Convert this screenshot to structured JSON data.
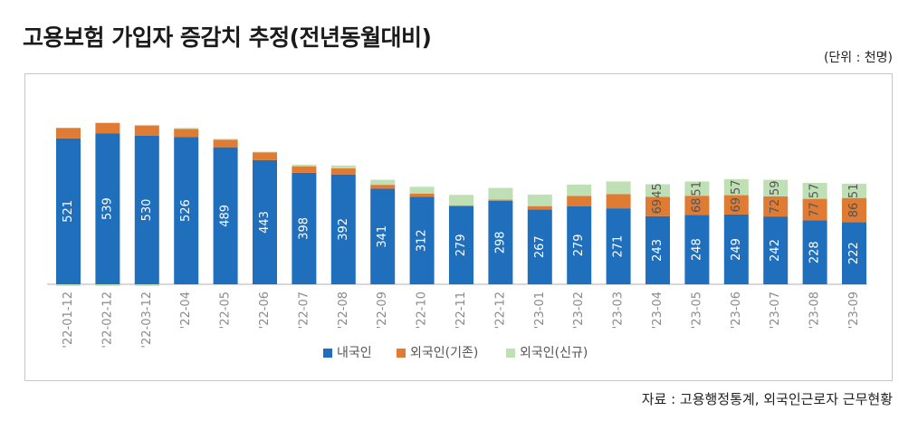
{
  "title": "고용보험 가입자 증감치 추정(전년동월대비)",
  "unit": "(단위 : 천명)",
  "source": "자료 : 고용행정통계, 외국인근로자 근무현황",
  "colors": {
    "domestic": "#1f6fbd",
    "foreign_existing": "#e07b34",
    "foreign_new": "#bfe0b4",
    "axis": "#b0b0b0",
    "tick": "#8a8a8a"
  },
  "chart_data": {
    "type": "bar",
    "stacked": true,
    "title": "고용보험 가입자 증감치 추정(전년동월대비)",
    "categories": [
      "'22-01-12",
      "'22-02-12",
      "'22-03-12",
      "'22-04",
      "'22-05",
      "'22-06",
      "'22-07",
      "'22-08",
      "'22-09",
      "'22-10",
      "'22-11",
      "'22-12",
      "'23-01",
      "'23-02",
      "'23-03",
      "'23-04",
      "'23-05",
      "'23-06",
      "'23-07",
      "'23-08",
      "'23-09"
    ],
    "series": [
      {
        "name": "내국인",
        "values": [
          521,
          539,
          530,
          526,
          489,
          443,
          398,
          392,
          341,
          312,
          279,
          298,
          267,
          279,
          271,
          243,
          248,
          249,
          242,
          228,
          222
        ]
      },
      {
        "name": "외국인(기존)",
        "values": [
          37,
          37,
          37,
          28,
          27,
          28,
          23,
          22,
          14,
          12,
          3,
          4,
          12,
          36,
          51,
          69,
          68,
          69,
          72,
          77,
          86
        ]
      },
      {
        "name": "외국인(신규)",
        "values": [
          -6,
          -6,
          -6,
          4,
          3,
          2,
          6,
          10,
          18,
          24,
          37,
          42,
          41,
          41,
          45,
          45,
          51,
          57,
          59,
          57,
          51
        ]
      }
    ],
    "data_labels": {
      "domestic": [
        "521",
        "539",
        "530",
        "526",
        "489",
        "443",
        "398",
        "392",
        "341",
        "312",
        "279",
        "298",
        "267",
        "279",
        "271",
        "243",
        "248",
        "249",
        "242",
        "228",
        "222"
      ],
      "foreign_existing": [
        "",
        "",
        "",
        "",
        "",
        "",
        "",
        "",
        "",
        "",
        "",
        "",
        "",
        "",
        "",
        "69",
        "68",
        "69",
        "72",
        "77",
        "86"
      ],
      "foreign_new": [
        "",
        "",
        "",
        "",
        "",
        "",
        "",
        "",
        "",
        "",
        "",
        "",
        "",
        "",
        "",
        "45",
        "51",
        "57",
        "59",
        "57",
        "51"
      ]
    },
    "ylim": [
      -10,
      600
    ],
    "legend": [
      "내국인",
      "외국인(기존)",
      "외국인(신규)"
    ],
    "legend_position": "bottom",
    "grid": false
  }
}
